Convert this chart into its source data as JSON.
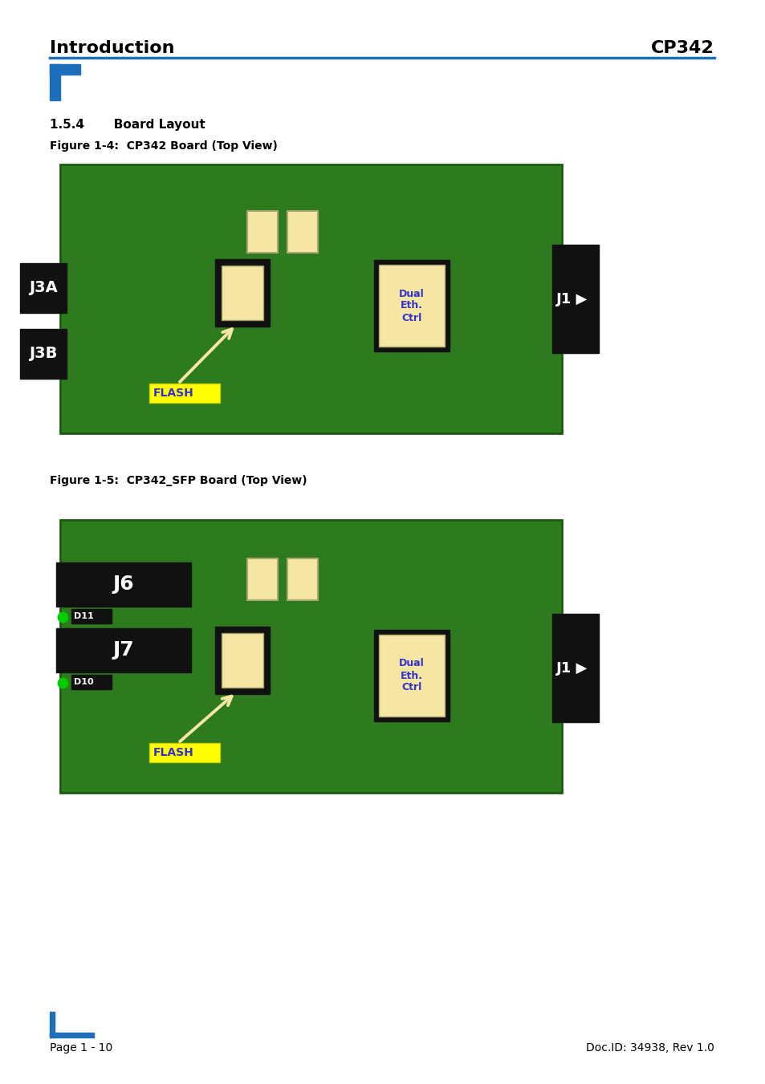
{
  "page_bg": "#ffffff",
  "header_left": "Introduction",
  "header_right": "CP342",
  "header_line_color": "#1e6fbb",
  "section_title": "1.5.4       Board Layout",
  "fig1_caption": "Figure 1-4:  CP342 Board (Top View)",
  "fig2_caption": "Figure 1-5:  CP342_SFP Board (Top View)",
  "footer_left": "Page 1 - 10",
  "footer_right": "Doc.ID: 34938, Rev 1.0",
  "board_green": "#2d7a1f",
  "board_border": "#1a5c0d",
  "component_yellow": "#f5e6a3",
  "connector_black": "#111111",
  "label_blue": "#3333cc",
  "arrow_color": "#f5e6a3",
  "dot_green": "#00cc00"
}
